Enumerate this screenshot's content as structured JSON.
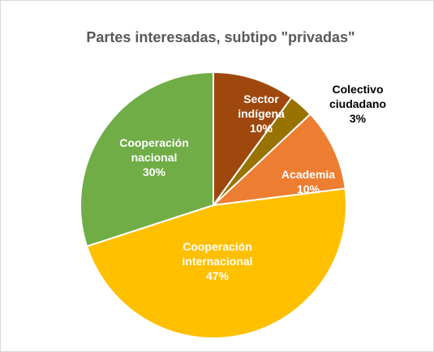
{
  "chart_data": {
    "type": "pie",
    "title": "Partes interesadas, subtipo \"privadas\"",
    "categories": [
      "Sector indígena",
      "Colectivo ciudadano",
      "Academia",
      "Cooperación internacional",
      "Cooperación nacional"
    ],
    "values": [
      10,
      3,
      10,
      47,
      30
    ],
    "value_labels": [
      "10%",
      "3%",
      "10%",
      "47%",
      "30%"
    ],
    "colors": [
      "#9e480e",
      "#997300",
      "#ed7d31",
      "#ffc000",
      "#70ad47"
    ]
  }
}
